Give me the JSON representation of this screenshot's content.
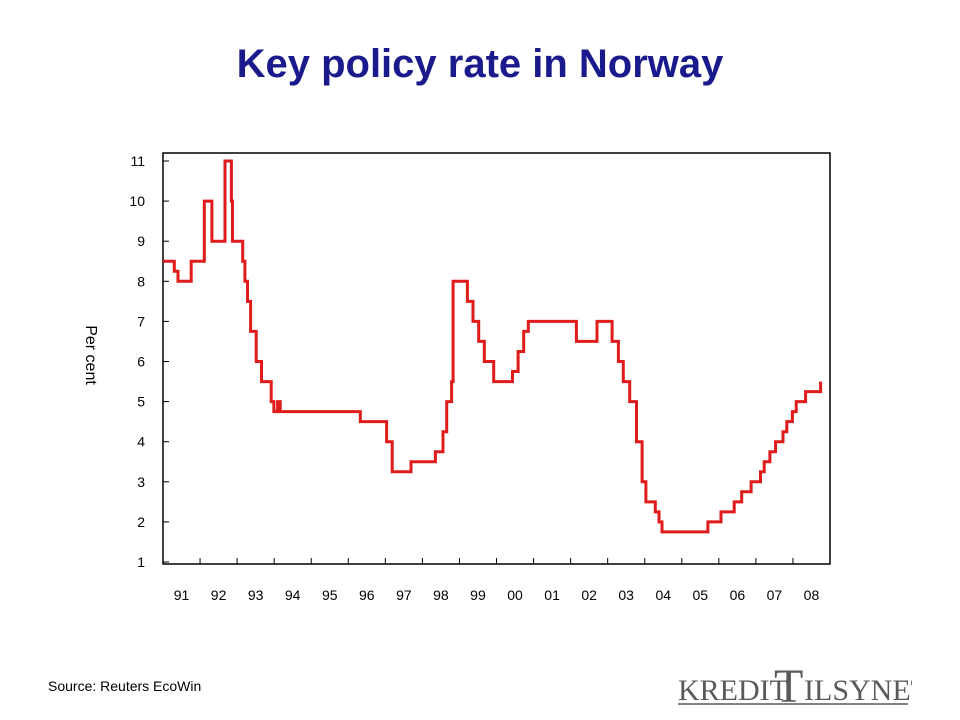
{
  "title": "Key policy rate in Norway",
  "source": "Source: Reuters EcoWin",
  "logo": {
    "left_text": "KREDIT",
    "big_letter": "T",
    "right_text": "ILSYNET",
    "color": "#5a5a5a"
  },
  "chart_data": {
    "type": "line",
    "title": "Key policy rate in Norway",
    "xlabel": "",
    "ylabel": "Per cent",
    "ylim": [
      1,
      11
    ],
    "xlim": [
      1991,
      2008.75
    ],
    "yticks": [
      1,
      2,
      3,
      4,
      5,
      6,
      7,
      8,
      9,
      10,
      11
    ],
    "xtick_labels": [
      "91",
      "92",
      "93",
      "94",
      "95",
      "96",
      "97",
      "98",
      "99",
      "00",
      "01",
      "02",
      "03",
      "04",
      "05",
      "06",
      "07",
      "08"
    ],
    "grid": false,
    "line_color": "#e01b1b",
    "series": [
      {
        "step": true,
        "points": [
          [
            1991.0,
            8.5
          ],
          [
            1991.3,
            8.25
          ],
          [
            1991.4,
            8.0
          ],
          [
            1991.75,
            8.5
          ],
          [
            1992.1,
            10.0
          ],
          [
            1992.3,
            9.0
          ],
          [
            1992.65,
            11.0
          ],
          [
            1992.82,
            10.0
          ],
          [
            1992.85,
            9.0
          ],
          [
            1993.12,
            8.5
          ],
          [
            1993.18,
            8.0
          ],
          [
            1993.25,
            7.5
          ],
          [
            1993.33,
            6.75
          ],
          [
            1993.48,
            6.0
          ],
          [
            1993.62,
            5.5
          ],
          [
            1993.88,
            5.0
          ],
          [
            1993.95,
            4.75
          ],
          [
            1994.05,
            5.0
          ],
          [
            1994.12,
            4.75
          ],
          [
            1996.25,
            4.5
          ],
          [
            1996.95,
            4.0
          ],
          [
            1997.1,
            3.25
          ],
          [
            1997.6,
            3.5
          ],
          [
            1998.25,
            3.75
          ],
          [
            1998.45,
            4.25
          ],
          [
            1998.55,
            5.0
          ],
          [
            1998.68,
            5.5
          ],
          [
            1998.72,
            8.0
          ],
          [
            1999.1,
            7.5
          ],
          [
            1999.25,
            7.0
          ],
          [
            1999.4,
            6.5
          ],
          [
            1999.55,
            6.0
          ],
          [
            1999.8,
            5.5
          ],
          [
            2000.3,
            5.75
          ],
          [
            2000.45,
            6.25
          ],
          [
            2000.6,
            6.75
          ],
          [
            2000.72,
            7.0
          ],
          [
            2002.0,
            6.5
          ],
          [
            2002.55,
            7.0
          ],
          [
            2002.95,
            6.5
          ],
          [
            2003.12,
            6.0
          ],
          [
            2003.25,
            5.5
          ],
          [
            2003.42,
            5.0
          ],
          [
            2003.6,
            4.0
          ],
          [
            2003.75,
            3.0
          ],
          [
            2003.85,
            2.5
          ],
          [
            2004.1,
            2.25
          ],
          [
            2004.2,
            2.0
          ],
          [
            2004.28,
            1.75
          ],
          [
            2005.5,
            2.0
          ],
          [
            2005.85,
            2.25
          ],
          [
            2006.2,
            2.5
          ],
          [
            2006.4,
            2.75
          ],
          [
            2006.65,
            3.0
          ],
          [
            2006.9,
            3.25
          ],
          [
            2007.0,
            3.5
          ],
          [
            2007.15,
            3.75
          ],
          [
            2007.3,
            4.0
          ],
          [
            2007.5,
            4.25
          ],
          [
            2007.6,
            4.5
          ],
          [
            2007.75,
            4.75
          ],
          [
            2007.85,
            5.0
          ],
          [
            2008.1,
            5.25
          ],
          [
            2008.45,
            5.25
          ],
          [
            2008.5,
            5.5
          ]
        ]
      }
    ]
  }
}
